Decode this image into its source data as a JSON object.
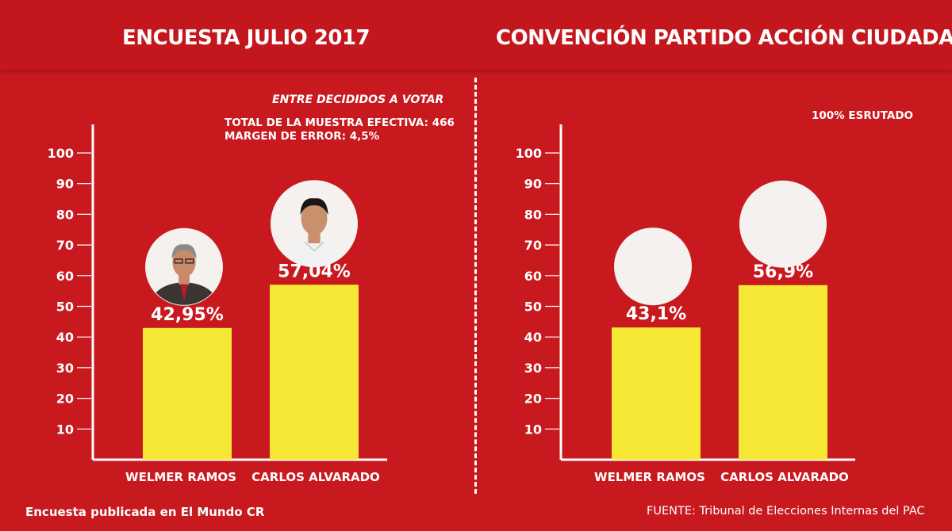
{
  "header": {
    "left_title": "ENCUESTA JULIO 2017",
    "right_title": "CONVENCIÓN PARTIDO ACCIÓN CIUDADANA"
  },
  "notes": {
    "subtitle": "ENTRE DECIDIDOS A VOTAR",
    "sample": "TOTAL DE LA MUESTRA EFECTIVA: 466",
    "margin": "MARGEN DE ERROR: 4,5%",
    "count": "100% ESRUTADO"
  },
  "footer": {
    "left": "Encuesta publicada en El  Mundo CR",
    "right": "FUENTE: Tribunal de Elecciones Internas del PAC"
  },
  "colors": {
    "background": "#c8191f",
    "bar": "#f7e836",
    "text": "#ffffff"
  },
  "chart_data": [
    {
      "type": "bar",
      "categories": [
        "WELMER RAMOS",
        "CARLOS ALVARADO"
      ],
      "values": [
        42.95,
        57.04
      ],
      "value_labels": [
        "42,95%",
        "57,04%"
      ],
      "yticks": [
        "10",
        "20",
        "30",
        "40",
        "50",
        "60",
        "70",
        "80",
        "90",
        "100"
      ],
      "ylim": [
        0,
        100
      ],
      "grid": false
    },
    {
      "type": "bar",
      "categories": [
        "WELMER RAMOS",
        "CARLOS ALVARADO"
      ],
      "values": [
        43.1,
        56.9
      ],
      "value_labels": [
        "43,1%",
        "56,9%"
      ],
      "yticks": [
        "10",
        "20",
        "30",
        "40",
        "50",
        "60",
        "70",
        "80",
        "90",
        "100"
      ],
      "ylim": [
        0,
        100
      ],
      "grid": false
    }
  ]
}
